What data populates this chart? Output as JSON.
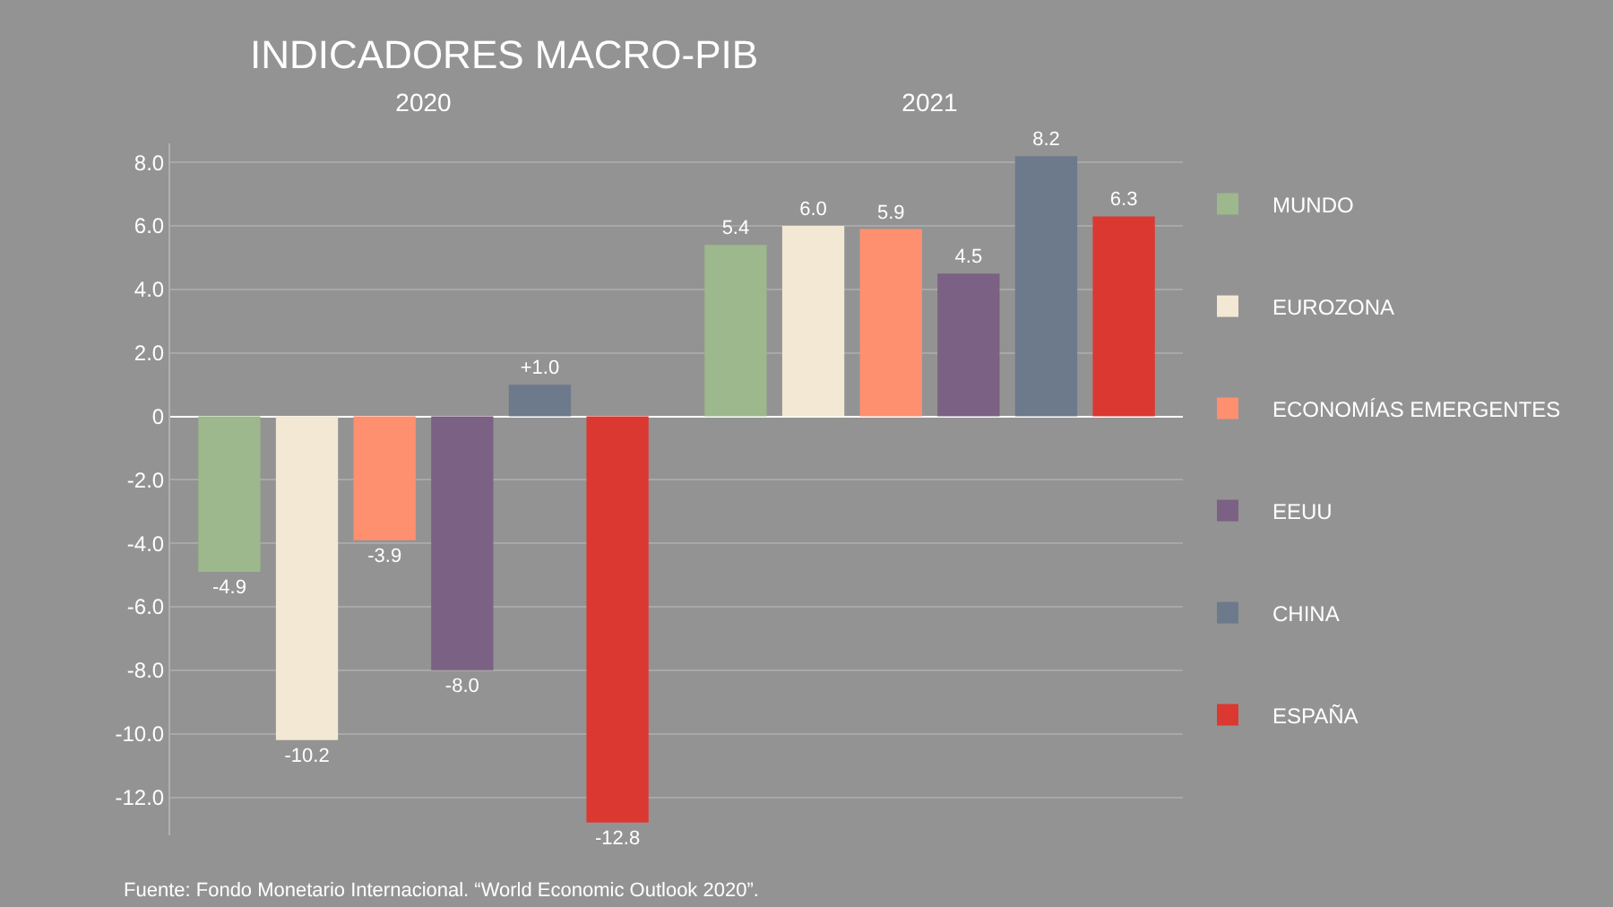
{
  "chart_data": {
    "type": "bar",
    "title": "INDICADORES MACRO-PIB",
    "categories": [
      "2020",
      "2021"
    ],
    "series": [
      {
        "name": "MUNDO",
        "color": "#9cb88c",
        "values": [
          -4.9,
          5.4
        ],
        "value_labels": [
          "-4.9",
          "5.4"
        ]
      },
      {
        "name": "EUROZONA",
        "color": "#f2e8d4",
        "values": [
          -10.2,
          6.0
        ],
        "value_labels": [
          "-10.2",
          "6.0"
        ]
      },
      {
        "name": "ECONOMÍAS EMERGENTES",
        "color": "#fe9070",
        "values": [
          -3.9,
          5.9
        ],
        "value_labels": [
          "-3.9",
          "5.9"
        ]
      },
      {
        "name": "EEUU",
        "color": "#7b6183",
        "values": [
          -8.0,
          4.5
        ],
        "value_labels": [
          "-8.0",
          "4.5"
        ]
      },
      {
        "name": "CHINA",
        "color": "#6c7a8c",
        "values": [
          1.0,
          8.2
        ],
        "value_labels": [
          "+1.0",
          "8.2"
        ]
      },
      {
        "name": "ESPAÑA",
        "color": "#db3832",
        "values": [
          -12.8,
          6.3
        ],
        "value_labels": [
          "-12.8",
          "6.3"
        ]
      }
    ],
    "ylim": [
      -13.2,
      8.6
    ],
    "yticks": [
      {
        "value": 8,
        "label": "8.0"
      },
      {
        "value": 6,
        "label": "6.0"
      },
      {
        "value": 4,
        "label": "4.0"
      },
      {
        "value": 2,
        "label": "2.0"
      },
      0,
      {
        "value": -2,
        "label": "-2.0"
      },
      {
        "value": -4,
        "label": "-4.0"
      },
      {
        "value": -6,
        "label": "-6.0"
      },
      {
        "value": -8,
        "label": "-8.0"
      },
      {
        "value": -10,
        "label": "-10.0"
      },
      {
        "value": -12,
        "label": "-12.0"
      }
    ],
    "grid": "y",
    "legend": "right",
    "annotations": [
      "Fuente: Fondo Monetario Internacional. “World Economic Outlook 2020”."
    ]
  }
}
